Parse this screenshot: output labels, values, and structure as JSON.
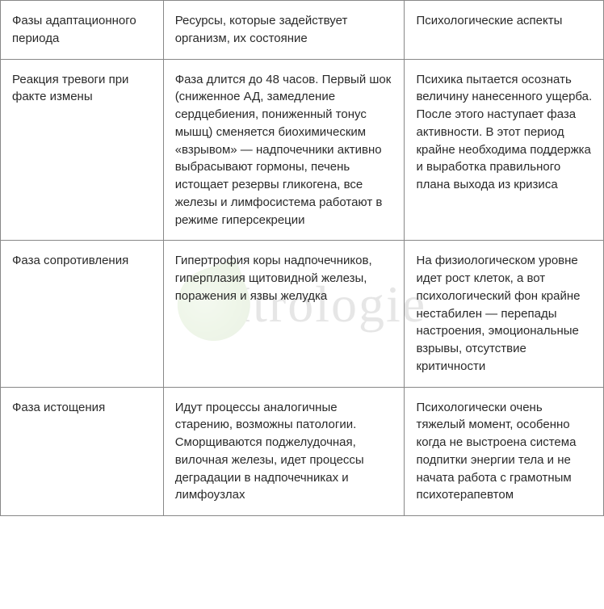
{
  "watermark": {
    "text": "Itrologie",
    "leaf_color_light": "#a8d088",
    "leaf_color_dark": "#5a9030",
    "opacity": 0.12,
    "fontsize": 64,
    "text_color": "#3a3a3a"
  },
  "table": {
    "type": "table",
    "border_color": "#888888",
    "background_color": "#ffffff",
    "text_color": "#2a2a2a",
    "fontsize": 15,
    "line_height": 1.45,
    "column_widths_pct": [
      27,
      40,
      33
    ],
    "columns": [
      "Фазы адаптационного периода",
      "Ресурсы, которые задействует организм, их состояние",
      "Психологические аспекты"
    ],
    "rows": [
      [
        "Реакция тревоги при факте измены",
        "Фаза длится до 48 часов. Первый шок (сниженное АД, замедление сердцебиения, пониженный тонус мышц) сменяется биохимическим «взрывом» — надпочечники активно выбрасывают гормоны, печень истощает резервы гликогена, все железы и лимфосистема работают в режиме гиперсекреции",
        "Психика пытается осознать величину нанесенного ущерба. После этого наступает фаза активности. В этот период крайне необходима поддержка и выработка правильного плана выхода из кризиса"
      ],
      [
        "Фаза сопротивления",
        "Гипертрофия коры надпочечников, гиперплазия щитовидной железы, поражения и язвы желудка",
        "На физиологическом уровне идет рост клеток, а вот психологический фон крайне нестабилен — перепады настроения, эмоциональные взрывы, отсутствие критичности"
      ],
      [
        "Фаза истощения",
        "Идут процессы аналогичные старению, возможны патологии. Сморщиваются поджелудочная, вилочная железы, идет процессы деградации в надпочечниках и лимфоузлах",
        "Психологически очень тяжелый момент, особенно когда не выстроена система подпитки энергии тела и не начата работа с грамотным психотерапевтом"
      ]
    ]
  }
}
